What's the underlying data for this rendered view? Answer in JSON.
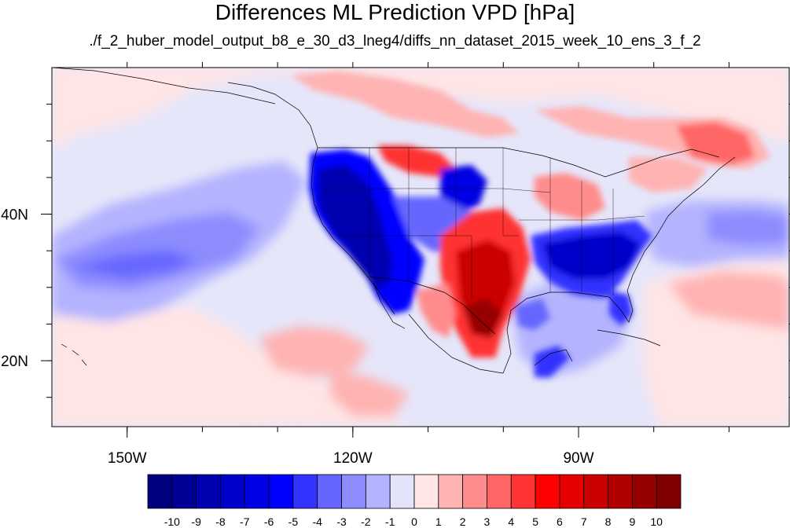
{
  "title": "Differences ML Prediction VPD [hPa]",
  "subtitle": "./f_2_huber_model_output_b8_e_30_d3_lneg4/diffs_nn_dataset_2015_week_10_ens_3_f_2",
  "map": {
    "lon_range": [
      -160,
      -62
    ],
    "lat_range": [
      11,
      60
    ],
    "lon_labels": [
      {
        "lon": -150,
        "text": "150W"
      },
      {
        "lon": -120,
        "text": "120W"
      },
      {
        "lon": -90,
        "text": "90W"
      }
    ],
    "lat_labels": [
      {
        "lat": 40,
        "text": "40N"
      },
      {
        "lat": 20,
        "text": "20N"
      }
    ],
    "minor_lon_ticks": [
      -150,
      -140,
      -130,
      -120,
      -110,
      -100,
      -90,
      -80,
      -70
    ],
    "minor_lat_ticks": [
      15,
      20,
      25,
      30,
      35,
      40,
      45,
      50,
      55
    ]
  },
  "colorbar": {
    "labels": [
      "-10",
      "-9",
      "-8",
      "-7",
      "-6",
      "-5",
      "-4",
      "-3",
      "-2",
      "-1",
      "0",
      "1",
      "2",
      "3",
      "4",
      "5",
      "6",
      "7",
      "8",
      "9",
      "10"
    ],
    "colors": [
      "#00007f",
      "#000097",
      "#0000b0",
      "#0000cb",
      "#0000e4",
      "#0000ff",
      "#3333ff",
      "#6666ff",
      "#8c8cff",
      "#b3b3ff",
      "#e3e3fb",
      "#ffe5e5",
      "#ffb3b3",
      "#ff8c8c",
      "#ff6666",
      "#ff3333",
      "#ff0000",
      "#e40000",
      "#cb0000",
      "#b00000",
      "#970000",
      "#7f0000"
    ]
  }
}
